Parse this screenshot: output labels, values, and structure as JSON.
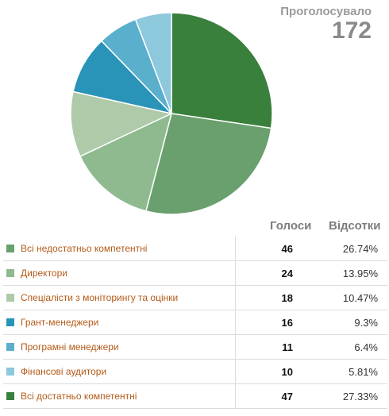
{
  "poll": {
    "total_label": "Проголосувало",
    "total_value": "172",
    "votes_header": "Голоси",
    "percent_header": "Відсотки"
  },
  "chart_data": {
    "type": "pie",
    "categories": [
      "Всі недостатньо компетентні",
      "Директори",
      "Спеціалісти з моніторингу та оцінки",
      "Грант-менеджери",
      "Програмні менеджери",
      "Фінансові аудитори",
      "Всі достатньо компетентні"
    ],
    "values": [
      46,
      24,
      18,
      16,
      11,
      10,
      47
    ],
    "percent_labels": [
      "26.74%",
      "13.95%",
      "10.47%",
      "9.3%",
      "6.4%",
      "5.81%",
      "27.33%"
    ],
    "colors": [
      "#6a9f6e",
      "#8fba8f",
      "#aecaa9",
      "#2a93b8",
      "#5aafcc",
      "#8ec8dc",
      "#38803b"
    ],
    "start_angle_deg": 0,
    "direction": "clockwise",
    "slice_order_from_top": [
      6,
      0,
      1,
      2,
      3,
      4,
      5
    ]
  },
  "rows": [
    {
      "label": "Всі недостатньо компетентні",
      "votes": "46",
      "percent": "26.74%"
    },
    {
      "label": "Директори",
      "votes": "24",
      "percent": "13.95%"
    },
    {
      "label": "Спеціалісти з моніторингу та оцінки",
      "votes": "18",
      "percent": "10.47%"
    },
    {
      "label": "Грант-менеджери",
      "votes": "16",
      "percent": "9.3%"
    },
    {
      "label": "Програмні менеджери",
      "votes": "11",
      "percent": "6.4%"
    },
    {
      "label": "Фінансові аудитори",
      "votes": "10",
      "percent": "5.81%"
    },
    {
      "label": "Всі достатньо компетентні",
      "votes": "47",
      "percent": "27.33%"
    }
  ]
}
